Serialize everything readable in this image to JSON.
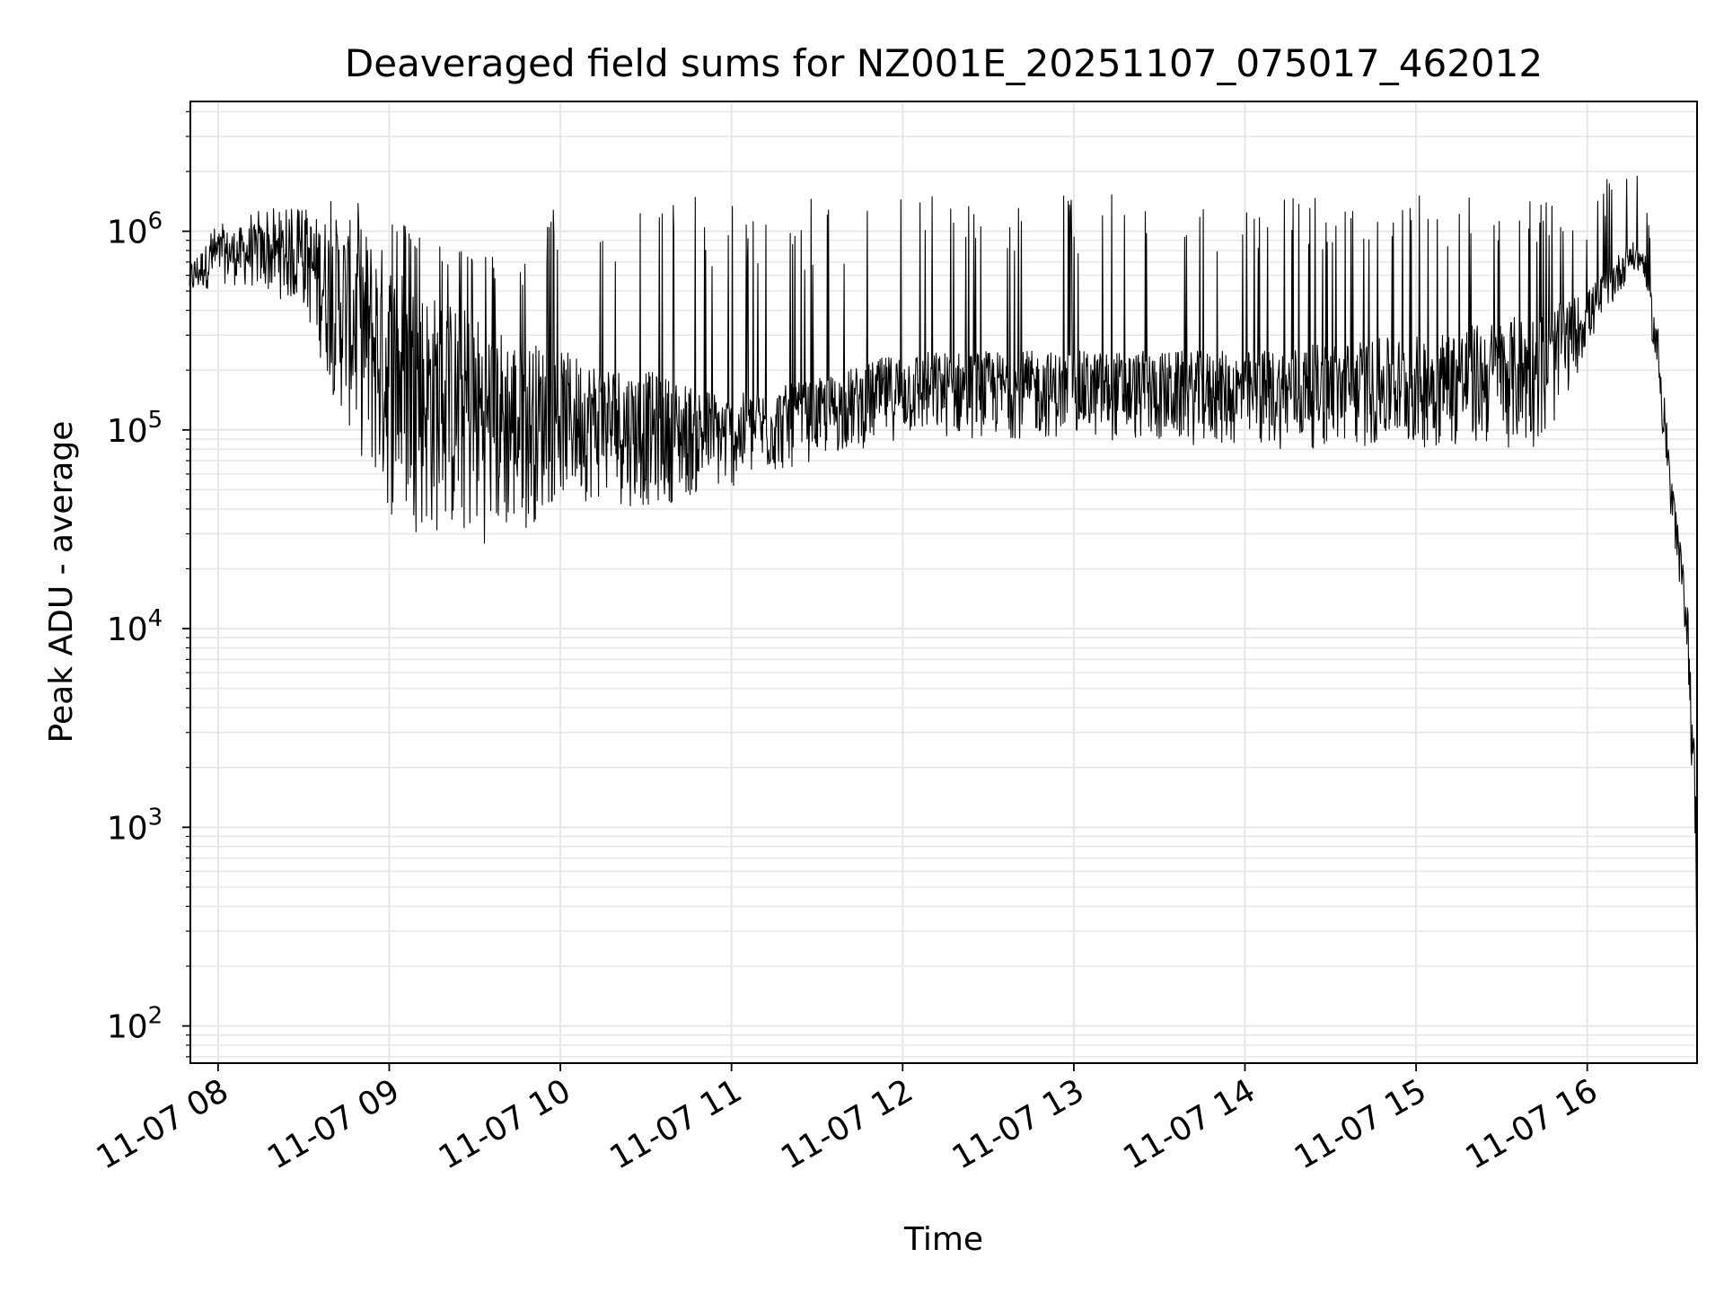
{
  "chart_data": {
    "type": "line",
    "title": "Deaveraged field sums for NZ001E_20251107_075017_462012",
    "xlabel": "Time",
    "ylabel": "Peak ADU - average",
    "y_scale": "log",
    "ylim": [
      65,
      4500000
    ],
    "xlim": [
      "2025-11-07 07:50:17",
      "2025-11-07 16:38:30"
    ],
    "grid": true,
    "line_color": "#000000",
    "grid_color": "#e6e6e6",
    "x_ticks": [
      {
        "value": "2025-11-07 08:00",
        "label": "11-07 08"
      },
      {
        "value": "2025-11-07 09:00",
        "label": "11-07 09"
      },
      {
        "value": "2025-11-07 10:00",
        "label": "11-07 10"
      },
      {
        "value": "2025-11-07 11:00",
        "label": "11-07 11"
      },
      {
        "value": "2025-11-07 12:00",
        "label": "11-07 12"
      },
      {
        "value": "2025-11-07 13:00",
        "label": "11-07 13"
      },
      {
        "value": "2025-11-07 14:00",
        "label": "11-07 14"
      },
      {
        "value": "2025-11-07 15:00",
        "label": "11-07 15"
      },
      {
        "value": "2025-11-07 16:00",
        "label": "11-07 16"
      }
    ],
    "y_ticks": [
      {
        "value": 100,
        "base": "10",
        "exp": "2"
      },
      {
        "value": 1000,
        "base": "10",
        "exp": "3"
      },
      {
        "value": 10000,
        "base": "10",
        "exp": "4"
      },
      {
        "value": 100000,
        "base": "10",
        "exp": "5"
      },
      {
        "value": 1000000,
        "base": "10",
        "exp": "6"
      }
    ],
    "series": [
      {
        "envelope": [
          {
            "t": "2025-11-07 07:50",
            "low": 450000,
            "high": 700000,
            "spike": 700000
          },
          {
            "t": "2025-11-07 08:00",
            "low": 550000,
            "high": 1000000,
            "spike": 1100000
          },
          {
            "t": "2025-11-07 08:15",
            "low": 500000,
            "high": 1100000,
            "spike": 1300000
          },
          {
            "t": "2025-11-07 08:30",
            "low": 400000,
            "high": 1200000,
            "spike": 1300000
          },
          {
            "t": "2025-11-07 08:40",
            "low": 150000,
            "high": 1200000,
            "spike": 1500000
          },
          {
            "t": "2025-11-07 08:50",
            "low": 70000,
            "high": 1100000,
            "spike": 1500000
          },
          {
            "t": "2025-11-07 09:00",
            "low": 35000,
            "high": 800000,
            "spike": 1200000
          },
          {
            "t": "2025-11-07 09:15",
            "low": 28000,
            "high": 500000,
            "spike": 900000
          },
          {
            "t": "2025-11-07 09:30",
            "low": 26000,
            "high": 400000,
            "spike": 800000
          },
          {
            "t": "2025-11-07 09:45",
            "low": 28000,
            "high": 300000,
            "spike": 700000
          },
          {
            "t": "2025-11-07 10:00",
            "low": 45000,
            "high": 250000,
            "spike": 1500000
          },
          {
            "t": "2025-11-07 10:30",
            "low": 40000,
            "high": 200000,
            "spike": 1500000
          },
          {
            "t": "2025-11-07 11:00",
            "low": 50000,
            "high": 150000,
            "spike": 1500000
          },
          {
            "t": "2025-11-07 11:30",
            "low": 70000,
            "high": 180000,
            "spike": 1500000
          },
          {
            "t": "2025-11-07 12:00",
            "low": 90000,
            "high": 250000,
            "spike": 1600000
          },
          {
            "t": "2025-11-07 13:00",
            "low": 90000,
            "high": 250000,
            "spike": 1600000
          },
          {
            "t": "2025-11-07 14:00",
            "low": 80000,
            "high": 250000,
            "spike": 1600000
          },
          {
            "t": "2025-11-07 15:00",
            "low": 80000,
            "high": 300000,
            "spike": 1600000
          },
          {
            "t": "2025-11-07 15:45",
            "low": 80000,
            "high": 400000,
            "spike": 1500000
          },
          {
            "t": "2025-11-07 16:00",
            "low": 250000,
            "high": 500000,
            "spike": 1300000
          },
          {
            "t": "2025-11-07 16:15",
            "low": 600000,
            "high": 900000,
            "spike": 2700000
          },
          {
            "t": "2025-11-07 16:20",
            "low": 600000,
            "high": 800000,
            "spike": 1900000
          },
          {
            "t": "2025-11-07 16:25",
            "low": 150000,
            "high": 300000,
            "spike": 300000
          },
          {
            "t": "2025-11-07 16:30",
            "low": 25000,
            "high": 50000,
            "spike": 50000
          },
          {
            "t": "2025-11-07 16:35",
            "low": 8000,
            "high": 15000,
            "spike": 15000
          },
          {
            "t": "2025-11-07 16:38",
            "low": 500,
            "high": 2000,
            "spike": 2000
          }
        ]
      }
    ]
  }
}
